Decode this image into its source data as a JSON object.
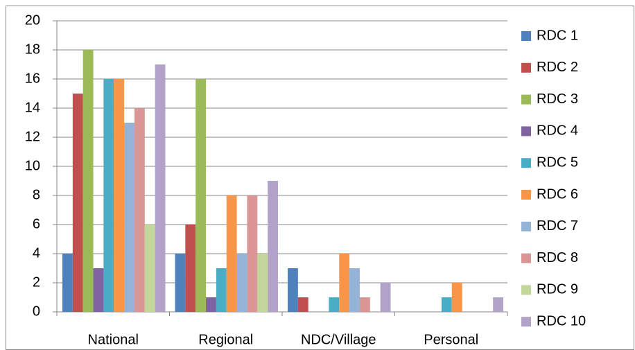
{
  "chart_data": {
    "type": "bar",
    "categories": [
      "National",
      "Regional",
      "NDC/Village",
      "Personal"
    ],
    "series": [
      {
        "name": "RDC 1",
        "color": "#4F81BD",
        "values": [
          4,
          4,
          3,
          0
        ]
      },
      {
        "name": "RDC 2",
        "color": "#C0504D",
        "values": [
          15,
          6,
          1,
          0
        ]
      },
      {
        "name": "RDC 3",
        "color": "#9BBB59",
        "values": [
          18,
          16,
          0,
          0
        ]
      },
      {
        "name": "RDC 4",
        "color": "#8064A2",
        "values": [
          3,
          1,
          0,
          0
        ]
      },
      {
        "name": "RDC 5",
        "color": "#4BACC6",
        "values": [
          16,
          3,
          1,
          1
        ]
      },
      {
        "name": "RDC 6",
        "color": "#F79646",
        "values": [
          16,
          8,
          4,
          2
        ]
      },
      {
        "name": "RDC 7",
        "color": "#95B3D7",
        "values": [
          13,
          4,
          3,
          0
        ]
      },
      {
        "name": "RDC 8",
        "color": "#D99694",
        "values": [
          14,
          8,
          1,
          0
        ]
      },
      {
        "name": "RDC 9",
        "color": "#C3D69B",
        "values": [
          6,
          4,
          0,
          0
        ]
      },
      {
        "name": "RDC 10",
        "color": "#B2A2C7",
        "values": [
          17,
          9,
          2,
          1
        ]
      }
    ],
    "ylim": [
      0,
      20
    ],
    "yticks": [
      0,
      2,
      4,
      6,
      8,
      10,
      12,
      14,
      16,
      18,
      20
    ],
    "grid": true,
    "legend": "right"
  }
}
